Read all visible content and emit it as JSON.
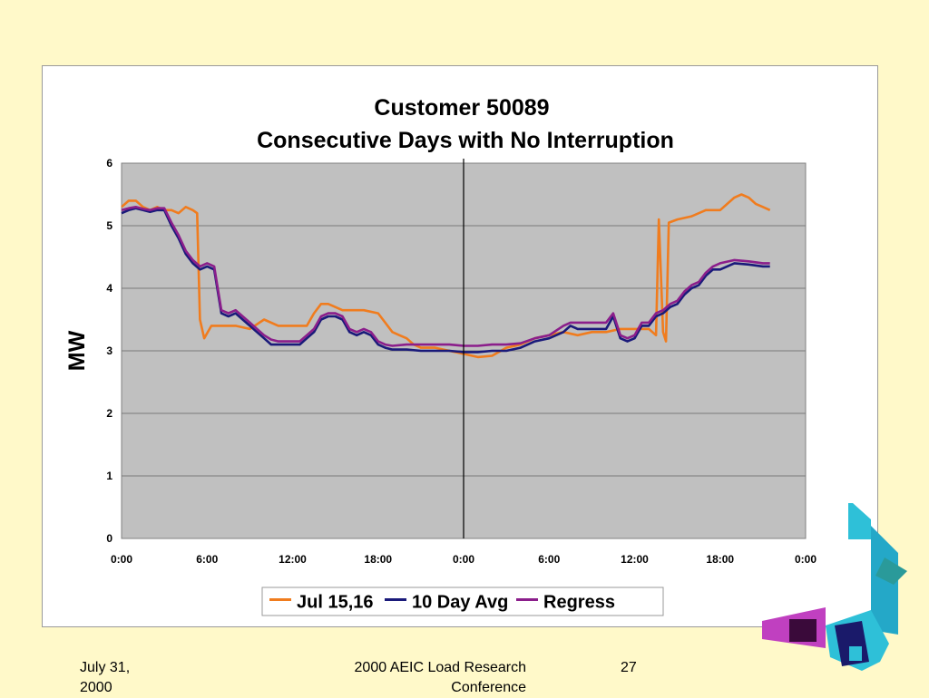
{
  "chart_data": {
    "type": "line",
    "title": "Customer 50089",
    "subtitle": "Consecutive Days with No Interruption",
    "ylabel": "MW",
    "xlabel": "",
    "ylim": [
      0,
      6
    ],
    "y_ticks": [
      "0",
      "1",
      "2",
      "3",
      "4",
      "5",
      "6"
    ],
    "x_ticks": [
      "0:00",
      "6:00",
      "12:00",
      "18:00",
      "0:00",
      "6:00",
      "12:00",
      "18:00",
      "0:00"
    ],
    "x_range_hours": [
      0,
      48
    ],
    "divider_at_hour": 24,
    "grid": true,
    "legend_position": "bottom",
    "plot_background": "#C0C0C0",
    "series": [
      {
        "name": "Jul 15,16",
        "color": "#F07C1E",
        "points": [
          [
            0,
            5.3
          ],
          [
            0.5,
            5.4
          ],
          [
            1,
            5.4
          ],
          [
            1.5,
            5.3
          ],
          [
            2,
            5.25
          ],
          [
            2.5,
            5.3
          ],
          [
            3,
            5.25
          ],
          [
            3.5,
            5.25
          ],
          [
            4,
            5.2
          ],
          [
            4.5,
            5.3
          ],
          [
            5,
            5.25
          ],
          [
            5.3,
            5.2
          ],
          [
            5.5,
            3.5
          ],
          [
            5.8,
            3.2
          ],
          [
            6.3,
            3.4
          ],
          [
            7,
            3.4
          ],
          [
            8,
            3.4
          ],
          [
            9,
            3.35
          ],
          [
            10,
            3.5
          ],
          [
            11,
            3.4
          ],
          [
            12,
            3.4
          ],
          [
            13,
            3.4
          ],
          [
            13.5,
            3.6
          ],
          [
            14,
            3.75
          ],
          [
            14.5,
            3.75
          ],
          [
            15,
            3.7
          ],
          [
            15.5,
            3.65
          ],
          [
            16,
            3.65
          ],
          [
            17,
            3.65
          ],
          [
            18,
            3.6
          ],
          [
            18.5,
            3.45
          ],
          [
            19,
            3.3
          ],
          [
            19.5,
            3.25
          ],
          [
            20,
            3.2
          ],
          [
            20.5,
            3.1
          ],
          [
            21,
            3.05
          ],
          [
            22,
            3.05
          ],
          [
            23,
            3.0
          ],
          [
            24,
            2.95
          ],
          [
            25,
            2.9
          ],
          [
            26,
            2.92
          ],
          [
            27,
            3.05
          ],
          [
            28,
            3.1
          ],
          [
            29,
            3.2
          ],
          [
            30,
            3.25
          ],
          [
            31,
            3.3
          ],
          [
            32,
            3.25
          ],
          [
            33,
            3.3
          ],
          [
            34,
            3.3
          ],
          [
            35,
            3.35
          ],
          [
            36,
            3.35
          ],
          [
            37,
            3.35
          ],
          [
            37.5,
            3.25
          ],
          [
            37.7,
            5.1
          ],
          [
            38,
            3.3
          ],
          [
            38.2,
            3.15
          ],
          [
            38.4,
            5.05
          ],
          [
            39,
            5.1
          ],
          [
            40,
            5.15
          ],
          [
            41,
            5.25
          ],
          [
            42,
            5.25
          ],
          [
            43,
            5.45
          ],
          [
            43.5,
            5.5
          ],
          [
            44,
            5.45
          ],
          [
            44.5,
            5.35
          ],
          [
            45,
            5.3
          ],
          [
            45.5,
            5.25
          ]
        ]
      },
      {
        "name": "10 Day Avg",
        "color": "#1A1A7A",
        "points": [
          [
            0,
            5.2
          ],
          [
            0.5,
            5.25
          ],
          [
            1,
            5.28
          ],
          [
            1.5,
            5.25
          ],
          [
            2,
            5.22
          ],
          [
            2.5,
            5.25
          ],
          [
            3,
            5.25
          ],
          [
            3.5,
            5.0
          ],
          [
            4,
            4.8
          ],
          [
            4.5,
            4.55
          ],
          [
            5,
            4.4
          ],
          [
            5.5,
            4.3
          ],
          [
            6,
            4.35
          ],
          [
            6.5,
            4.3
          ],
          [
            7,
            3.6
          ],
          [
            7.5,
            3.55
          ],
          [
            8,
            3.6
          ],
          [
            8.5,
            3.5
          ],
          [
            9,
            3.4
          ],
          [
            9.5,
            3.3
          ],
          [
            10,
            3.2
          ],
          [
            10.5,
            3.1
          ],
          [
            11,
            3.1
          ],
          [
            11.5,
            3.1
          ],
          [
            12,
            3.1
          ],
          [
            12.5,
            3.1
          ],
          [
            13,
            3.2
          ],
          [
            13.5,
            3.3
          ],
          [
            14,
            3.5
          ],
          [
            14.5,
            3.55
          ],
          [
            15,
            3.55
          ],
          [
            15.5,
            3.5
          ],
          [
            16,
            3.3
          ],
          [
            16.5,
            3.25
          ],
          [
            17,
            3.3
          ],
          [
            17.5,
            3.25
          ],
          [
            18,
            3.1
          ],
          [
            18.5,
            3.05
          ],
          [
            19,
            3.02
          ],
          [
            20,
            3.02
          ],
          [
            21,
            3.0
          ],
          [
            22,
            3.0
          ],
          [
            23,
            3.0
          ],
          [
            24,
            2.98
          ],
          [
            25,
            2.98
          ],
          [
            26,
            3.0
          ],
          [
            27,
            3.0
          ],
          [
            28,
            3.05
          ],
          [
            29,
            3.15
          ],
          [
            30,
            3.2
          ],
          [
            31,
            3.3
          ],
          [
            31.5,
            3.4
          ],
          [
            32,
            3.35
          ],
          [
            33,
            3.35
          ],
          [
            34,
            3.35
          ],
          [
            34.5,
            3.55
          ],
          [
            35,
            3.2
          ],
          [
            35.5,
            3.15
          ],
          [
            36,
            3.2
          ],
          [
            36.5,
            3.4
          ],
          [
            37,
            3.4
          ],
          [
            37.5,
            3.55
          ],
          [
            38,
            3.6
          ],
          [
            38.5,
            3.7
          ],
          [
            39,
            3.75
          ],
          [
            39.5,
            3.9
          ],
          [
            40,
            4.0
          ],
          [
            40.5,
            4.05
          ],
          [
            41,
            4.2
          ],
          [
            41.5,
            4.3
          ],
          [
            42,
            4.3
          ],
          [
            43,
            4.4
          ],
          [
            44,
            4.38
          ],
          [
            45,
            4.35
          ],
          [
            45.5,
            4.35
          ]
        ]
      },
      {
        "name": "Regress",
        "color": "#8B1E8B",
        "points": [
          [
            0,
            5.25
          ],
          [
            0.5,
            5.28
          ],
          [
            1,
            5.3
          ],
          [
            1.5,
            5.27
          ],
          [
            2,
            5.25
          ],
          [
            2.5,
            5.28
          ],
          [
            3,
            5.28
          ],
          [
            3.5,
            5.05
          ],
          [
            4,
            4.85
          ],
          [
            4.5,
            4.6
          ],
          [
            5,
            4.45
          ],
          [
            5.5,
            4.35
          ],
          [
            6,
            4.4
          ],
          [
            6.5,
            4.35
          ],
          [
            7,
            3.65
          ],
          [
            7.5,
            3.6
          ],
          [
            8,
            3.65
          ],
          [
            8.5,
            3.55
          ],
          [
            9,
            3.45
          ],
          [
            9.5,
            3.35
          ],
          [
            10,
            3.25
          ],
          [
            10.5,
            3.18
          ],
          [
            11,
            3.15
          ],
          [
            11.5,
            3.15
          ],
          [
            12,
            3.15
          ],
          [
            12.5,
            3.15
          ],
          [
            13,
            3.25
          ],
          [
            13.5,
            3.35
          ],
          [
            14,
            3.55
          ],
          [
            14.5,
            3.6
          ],
          [
            15,
            3.6
          ],
          [
            15.5,
            3.55
          ],
          [
            16,
            3.35
          ],
          [
            16.5,
            3.3
          ],
          [
            17,
            3.35
          ],
          [
            17.5,
            3.3
          ],
          [
            18,
            3.15
          ],
          [
            18.5,
            3.1
          ],
          [
            19,
            3.08
          ],
          [
            20,
            3.1
          ],
          [
            21,
            3.1
          ],
          [
            22,
            3.1
          ],
          [
            23,
            3.1
          ],
          [
            24,
            3.08
          ],
          [
            25,
            3.08
          ],
          [
            26,
            3.1
          ],
          [
            27,
            3.1
          ],
          [
            28,
            3.12
          ],
          [
            29,
            3.2
          ],
          [
            30,
            3.25
          ],
          [
            31,
            3.4
          ],
          [
            31.5,
            3.45
          ],
          [
            32,
            3.45
          ],
          [
            33,
            3.45
          ],
          [
            34,
            3.45
          ],
          [
            34.5,
            3.6
          ],
          [
            35,
            3.25
          ],
          [
            35.5,
            3.2
          ],
          [
            36,
            3.25
          ],
          [
            36.5,
            3.45
          ],
          [
            37,
            3.45
          ],
          [
            37.5,
            3.6
          ],
          [
            38,
            3.65
          ],
          [
            38.5,
            3.75
          ],
          [
            39,
            3.8
          ],
          [
            39.5,
            3.95
          ],
          [
            40,
            4.05
          ],
          [
            40.5,
            4.1
          ],
          [
            41,
            4.25
          ],
          [
            41.5,
            4.35
          ],
          [
            42,
            4.4
          ],
          [
            43,
            4.45
          ],
          [
            44,
            4.43
          ],
          [
            45,
            4.4
          ],
          [
            45.5,
            4.4
          ]
        ]
      }
    ]
  },
  "footer": {
    "date_line1": "July 31,",
    "date_line2": "2000",
    "conference_line1": "2000 AEIC Load Research",
    "conference_line2": "Conference",
    "page": "27"
  }
}
